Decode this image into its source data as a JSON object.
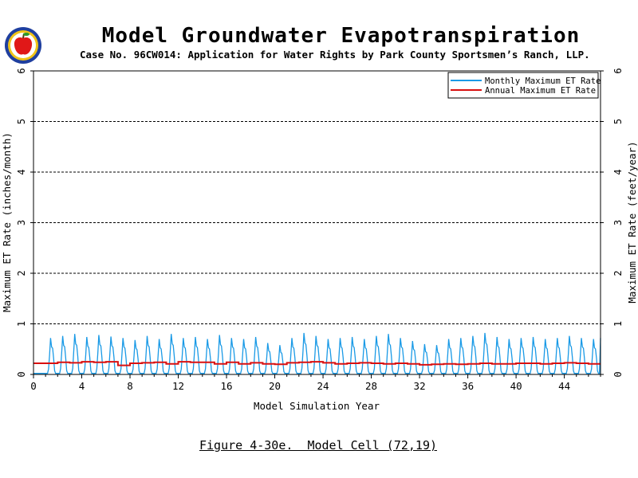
{
  "header": {
    "title": "Model Groundwater Evapotranspiration",
    "subtitle": "Case No. 96CW014: Application for Water Rights by Park County Sportsmen’s Ranch, LLP."
  },
  "caption": "Figure 4-30e.  Model Cell (72,19)",
  "colors": {
    "monthly": "#1a9ae6",
    "annual": "#d91010",
    "logo_ring": "#1f3f9f",
    "logo_apple": "#e01818"
  },
  "chart_data": {
    "type": "line",
    "title": "Model Groundwater Evapotranspiration",
    "xlabel": "Model Simulation Year",
    "ylabel_left": "Maximum ET Rate (inches/month)",
    "ylabel_right": "Maximum ET Rate (feet/year)",
    "xlim": [
      0,
      47
    ],
    "ylim_left": [
      0,
      6
    ],
    "ylim_right": [
      0,
      6
    ],
    "x_ticks": [
      0,
      4,
      8,
      12,
      16,
      20,
      24,
      28,
      32,
      36,
      40,
      44
    ],
    "y_ticks": [
      0,
      1,
      2,
      3,
      4,
      5,
      6
    ],
    "grid": "horizontal dashed",
    "legend_position": "top-right",
    "series": [
      {
        "name": "Monthly Maximum ET Rate",
        "axis": "left",
        "x_units": "year (monthly steps)",
        "annual_peaks": [
          0.0,
          0.72,
          0.76,
          0.8,
          0.74,
          0.78,
          0.75,
          0.72,
          0.68,
          0.76,
          0.7,
          0.8,
          0.72,
          0.74,
          0.7,
          0.78,
          0.72,
          0.7,
          0.74,
          0.62,
          0.58,
          0.72,
          0.82,
          0.76,
          0.7,
          0.72,
          0.74,
          0.7,
          0.76,
          0.8,
          0.72,
          0.66,
          0.6,
          0.58,
          0.7,
          0.72,
          0.76,
          0.82,
          0.74,
          0.7,
          0.72,
          0.74,
          0.7,
          0.72,
          0.76,
          0.72,
          0.7,
          0.74
        ],
        "baseline": 0.02
      },
      {
        "name": "Annual Maximum ET Rate",
        "axis": "right",
        "values": [
          0.22,
          0.22,
          0.24,
          0.23,
          0.25,
          0.24,
          0.25,
          0.18,
          0.22,
          0.23,
          0.24,
          0.21,
          0.25,
          0.24,
          0.24,
          0.21,
          0.24,
          0.21,
          0.23,
          0.21,
          0.2,
          0.23,
          0.24,
          0.25,
          0.23,
          0.21,
          0.22,
          0.23,
          0.22,
          0.21,
          0.22,
          0.21,
          0.19,
          0.2,
          0.21,
          0.2,
          0.21,
          0.22,
          0.21,
          0.21,
          0.22,
          0.22,
          0.21,
          0.22,
          0.23,
          0.22,
          0.21
        ]
      }
    ]
  }
}
